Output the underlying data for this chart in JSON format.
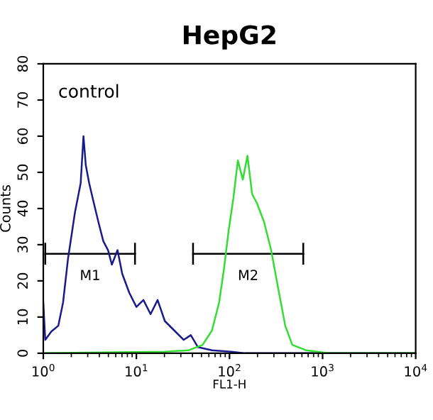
{
  "chart_data": {
    "type": "line",
    "title": "HepG2",
    "xlabel": "FL1-H",
    "ylabel": "Counts",
    "log": "x",
    "annotations": [
      "control"
    ],
    "xlim": [
      1,
      10000
    ],
    "xticks": [
      {
        "value": 1,
        "label": "10$^{0}$"
      },
      {
        "value": 10,
        "label": "10$^{1}$"
      },
      {
        "value": 100,
        "label": "10$^{2}$"
      },
      {
        "value": 1000,
        "label": "10$^{3}$"
      },
      {
        "value": 10000,
        "label": "10$^{4}$"
      }
    ],
    "ylim": [
      0,
      80
    ],
    "yticks": [
      0,
      10,
      20,
      30,
      40,
      50,
      60,
      70,
      80
    ],
    "grid": false,
    "legend": false,
    "marker": "none",
    "line_style": "solid",
    "series": [
      {
        "type": "line",
        "name": "M1",
        "color": "#000000",
        "x": [
          1.05,
          9.66
        ],
        "values": [
          27.5,
          27.5
        ],
        "errors": [
          3,
          3
        ]
      },
      {
        "type": "line",
        "name": "M2",
        "color": "#000000",
        "x": [
          40.6,
          620
        ],
        "values": [
          27.5,
          27.5
        ],
        "errors": [
          3,
          3
        ]
      },
      {
        "color": "#1a1a8c",
        "x": [
          1.0,
          1.05,
          1.22,
          1.45,
          1.63,
          1.84,
          2.19,
          2.52,
          2.7,
          2.86,
          3.11,
          3.49,
          3.93,
          4.41,
          4.96,
          5.45,
          6.27,
          7.04,
          8.39,
          10.0,
          11.9,
          14.2,
          16.9,
          20.2,
          25.5,
          32.2,
          38.4,
          45.7,
          64.9,
          104,
          147,
          10000
        ],
        "values": [
          14,
          3.7,
          6,
          7.6,
          14,
          26,
          39,
          47,
          60,
          52,
          47,
          41.5,
          36,
          31,
          28.5,
          24.5,
          28.5,
          22,
          16.7,
          12.8,
          14.7,
          10.8,
          14.7,
          8.9,
          6.3,
          3.7,
          5,
          1.7,
          0.8,
          0.4,
          0,
          0
        ]
      },
      {
        "color": "#33dd33",
        "x": [
          1,
          20.2,
          36.2,
          51.4,
          64.9,
          77.3,
          86.9,
          97.7,
          110,
          123,
          139,
          156,
          175,
          197,
          235,
          280,
          333,
          397,
          473,
          671,
          1205,
          10000
        ],
        "values": [
          0,
          0.4,
          0.8,
          2.3,
          6.3,
          14,
          23,
          33.7,
          42.8,
          53.3,
          48,
          54.6,
          44,
          41.5,
          36.3,
          28.5,
          18,
          7.6,
          2.3,
          0.8,
          0,
          0
        ]
      }
    ]
  }
}
